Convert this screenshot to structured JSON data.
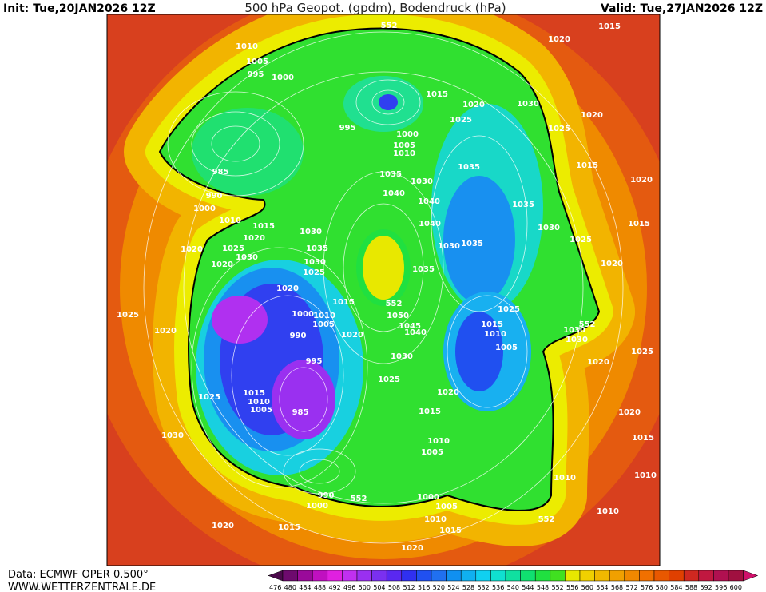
{
  "header": {
    "init": "Init: Tue,20JAN2026 12Z",
    "title": "500 hPa Geopot. (gpdm), Bodendruck (hPa)",
    "valid": "Valid: Tue,27JAN2026 12Z"
  },
  "footer": {
    "source": "Data: ECMWF OPER 0.500°",
    "site": "WWW.WETTERZENTRALE.DE"
  },
  "contour_labels": [
    "552",
    "1010",
    "1005",
    "995",
    "1000",
    "1020",
    "1015",
    "1015",
    "1020",
    "1030",
    "1020",
    "1025",
    "995",
    "1000",
    "1005",
    "1010",
    "1025",
    "985",
    "1035",
    "1015",
    "1035",
    "1030",
    "1020",
    "990",
    "1040",
    "1040",
    "1000",
    "1035",
    "1010",
    "1015",
    "1040",
    "1015",
    "1030",
    "1030",
    "1020",
    "1020",
    "1025",
    "1035",
    "1030",
    "1035",
    "1025",
    "1030",
    "1030",
    "1020",
    "1020",
    "1025",
    "1035",
    "1020",
    "1025",
    "1000",
    "1015",
    "1025",
    "552",
    "1050",
    "1010",
    "1005",
    "1045",
    "1040",
    "1015",
    "1010",
    "552",
    "1030",
    "1030",
    "1020",
    "990",
    "1020",
    "1005",
    "1025",
    "1030",
    "995",
    "1020",
    "1025",
    "1020",
    "1025",
    "1015",
    "1010",
    "1005",
    "985",
    "1015",
    "1020",
    "1030",
    "1010",
    "1015",
    "1005",
    "1010",
    "1010",
    "990",
    "552",
    "1000",
    "1000",
    "1005",
    "1010",
    "1015",
    "552",
    "1010",
    "1020",
    "1015",
    "1020"
  ],
  "colorbar": {
    "labels": [
      476,
      480,
      484,
      488,
      492,
      496,
      500,
      504,
      508,
      512,
      516,
      520,
      524,
      528,
      532,
      536,
      540,
      544,
      548,
      552,
      556,
      560,
      564,
      568,
      572,
      576,
      580,
      584,
      588,
      592,
      596,
      600
    ],
    "colors": [
      "#4b0a4b",
      "#6e0a6e",
      "#9a0a9a",
      "#c010c0",
      "#e020e0",
      "#c030f0",
      "#9a30f0",
      "#7a30f0",
      "#5a28f0",
      "#3030f0",
      "#2050f0",
      "#2070f0",
      "#1090f0",
      "#10b0f0",
      "#10d0f0",
      "#10e0d0",
      "#10e0a0",
      "#10e070",
      "#20e040",
      "#40e020",
      "#e8e800",
      "#f0d000",
      "#f0b800",
      "#f0a000",
      "#f08800",
      "#f07000",
      "#e85800",
      "#e04000",
      "#d02820",
      "#c01840",
      "#b01050",
      "#a01040",
      "#d0106a"
    ]
  }
}
